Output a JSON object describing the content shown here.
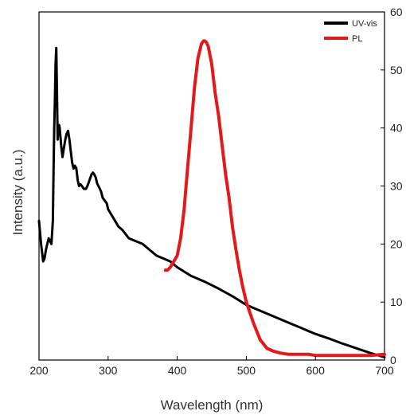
{
  "chart_data": {
    "type": "line",
    "xlabel": "Wavelength (nm)",
    "ylabel": "Intensity (a.u.)",
    "xlim": [
      200,
      700
    ],
    "y2lim": [
      0,
      60
    ],
    "x_ticks": [
      "200",
      "300",
      "400",
      "500",
      "600",
      "700"
    ],
    "y2_ticks": [
      "0",
      "10",
      "20",
      "30",
      "40",
      "50",
      "60"
    ],
    "legend_position": "top-right",
    "grid": false,
    "series": [
      {
        "name": "UV-vis",
        "color": "#000000",
        "axis": "right",
        "x": [
          200,
          203,
          206,
          208,
          210,
          212,
          214,
          216,
          218,
          219,
          220,
          221,
          222,
          223,
          224,
          225,
          226,
          227,
          228,
          229,
          230,
          232,
          234,
          236,
          238,
          240,
          242,
          244,
          246,
          248,
          250,
          252,
          254,
          256,
          258,
          260,
          262,
          265,
          268,
          270,
          273,
          276,
          278,
          280,
          282,
          284,
          286,
          288,
          290,
          292,
          295,
          298,
          300,
          305,
          310,
          315,
          320,
          330,
          340,
          350,
          360,
          370,
          380,
          390,
          400,
          420,
          440,
          460,
          480,
          500,
          520,
          540,
          560,
          580,
          600,
          620,
          640,
          660,
          680,
          700
        ],
        "y": [
          24,
          20,
          17,
          17.5,
          19,
          20,
          21,
          20.5,
          20,
          22,
          24,
          32,
          40,
          45,
          51,
          53.8,
          46,
          38,
          40,
          40.5,
          40,
          37,
          35,
          36.5,
          38,
          39,
          39.5,
          38,
          36,
          34,
          33,
          33.5,
          33,
          31,
          30,
          30.3,
          30,
          29.5,
          29.5,
          30,
          31,
          32,
          32.3,
          32,
          31.5,
          30.5,
          30,
          29.5,
          29,
          28,
          27.5,
          27,
          26,
          25,
          24,
          23,
          22.5,
          21,
          20.5,
          20,
          19,
          18,
          17.5,
          17,
          16,
          14.5,
          13.5,
          12.3,
          11,
          9.5,
          8.5,
          7.5,
          6.5,
          5.5,
          4.5,
          3.7,
          2.8,
          2,
          1.2,
          0.5
        ]
      },
      {
        "name": "PL",
        "color": "#e31a1c",
        "axis": "right",
        "x": [
          383,
          386,
          390,
          395,
          400,
          405,
          410,
          415,
          420,
          425,
          430,
          435,
          438,
          440,
          442,
          445,
          450,
          455,
          460,
          465,
          470,
          475,
          480,
          485,
          490,
          495,
          500,
          510,
          520,
          530,
          540,
          550,
          560,
          570,
          580,
          590,
          600,
          620,
          640,
          660,
          680,
          700
        ],
        "y": [
          15.5,
          15.5,
          16,
          17,
          18,
          21,
          26,
          33,
          40,
          47,
          52,
          54.5,
          55,
          55,
          54.8,
          54,
          51,
          46,
          42,
          37,
          32,
          28,
          23,
          19,
          15.5,
          12.5,
          10,
          6.5,
          3.5,
          2,
          1.5,
          1.2,
          1,
          1,
          1,
          1,
          0.8,
          0.8,
          0.8,
          0.8,
          0.8,
          1
        ]
      }
    ]
  }
}
